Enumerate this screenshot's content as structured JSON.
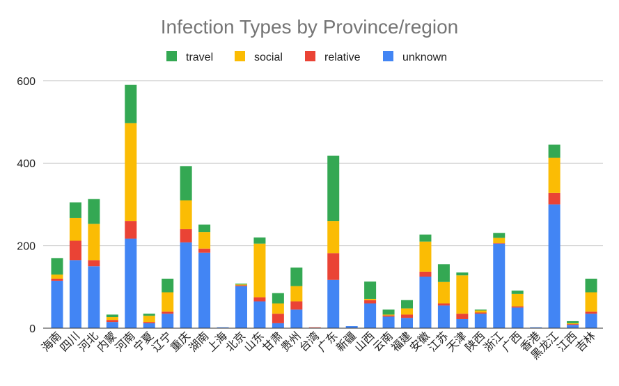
{
  "chart_data": {
    "type": "bar",
    "stacked": true,
    "title": "Infection Types by Province/region",
    "xlabel": "",
    "ylabel": "",
    "ylim": [
      0,
      620
    ],
    "yticks": [
      0,
      200,
      400,
      600
    ],
    "grid": true,
    "legend_position": "top",
    "categories": [
      "海南",
      "四川",
      "河北",
      "内蒙",
      "河南",
      "宁夏",
      "辽宁",
      "重庆",
      "湖南",
      "上海",
      "北京",
      "山东",
      "甘肃",
      "贵州",
      "台湾",
      "广东",
      "新疆",
      "山西",
      "云南",
      "福建",
      "安徽",
      "江苏",
      "天津",
      "陕西",
      "浙江",
      "广西",
      "香港",
      "黑龙江",
      "江西",
      "吉林"
    ],
    "series": [
      {
        "name": "unknown",
        "color": "#4285F4",
        "values": [
          115,
          165,
          150,
          15,
          217,
          12,
          35,
          208,
          183,
          2,
          102,
          65,
          12,
          45,
          1,
          117,
          5,
          60,
          28,
          25,
          125,
          55,
          22,
          35,
          205,
          50,
          2,
          300,
          8,
          35
        ]
      },
      {
        "name": "relative",
        "color": "#EA4335",
        "values": [
          5,
          47,
          15,
          5,
          43,
          3,
          5,
          32,
          10,
          0,
          2,
          10,
          23,
          20,
          1,
          65,
          0,
          8,
          3,
          8,
          12,
          5,
          13,
          3,
          1,
          3,
          0,
          28,
          2,
          5
        ]
      },
      {
        "name": "social",
        "color": "#FBBC04",
        "values": [
          10,
          55,
          88,
          7,
          237,
          15,
          47,
          70,
          40,
          0,
          2,
          130,
          25,
          37,
          0,
          78,
          0,
          3,
          2,
          15,
          73,
          52,
          93,
          5,
          13,
          30,
          0,
          85,
          2,
          47
        ]
      },
      {
        "name": "travel",
        "color": "#34A853",
        "values": [
          40,
          38,
          60,
          6,
          93,
          5,
          33,
          83,
          18,
          0,
          2,
          15,
          25,
          45,
          0,
          158,
          0,
          42,
          12,
          20,
          17,
          43,
          7,
          2,
          12,
          8,
          0,
          32,
          5,
          33
        ]
      }
    ]
  }
}
